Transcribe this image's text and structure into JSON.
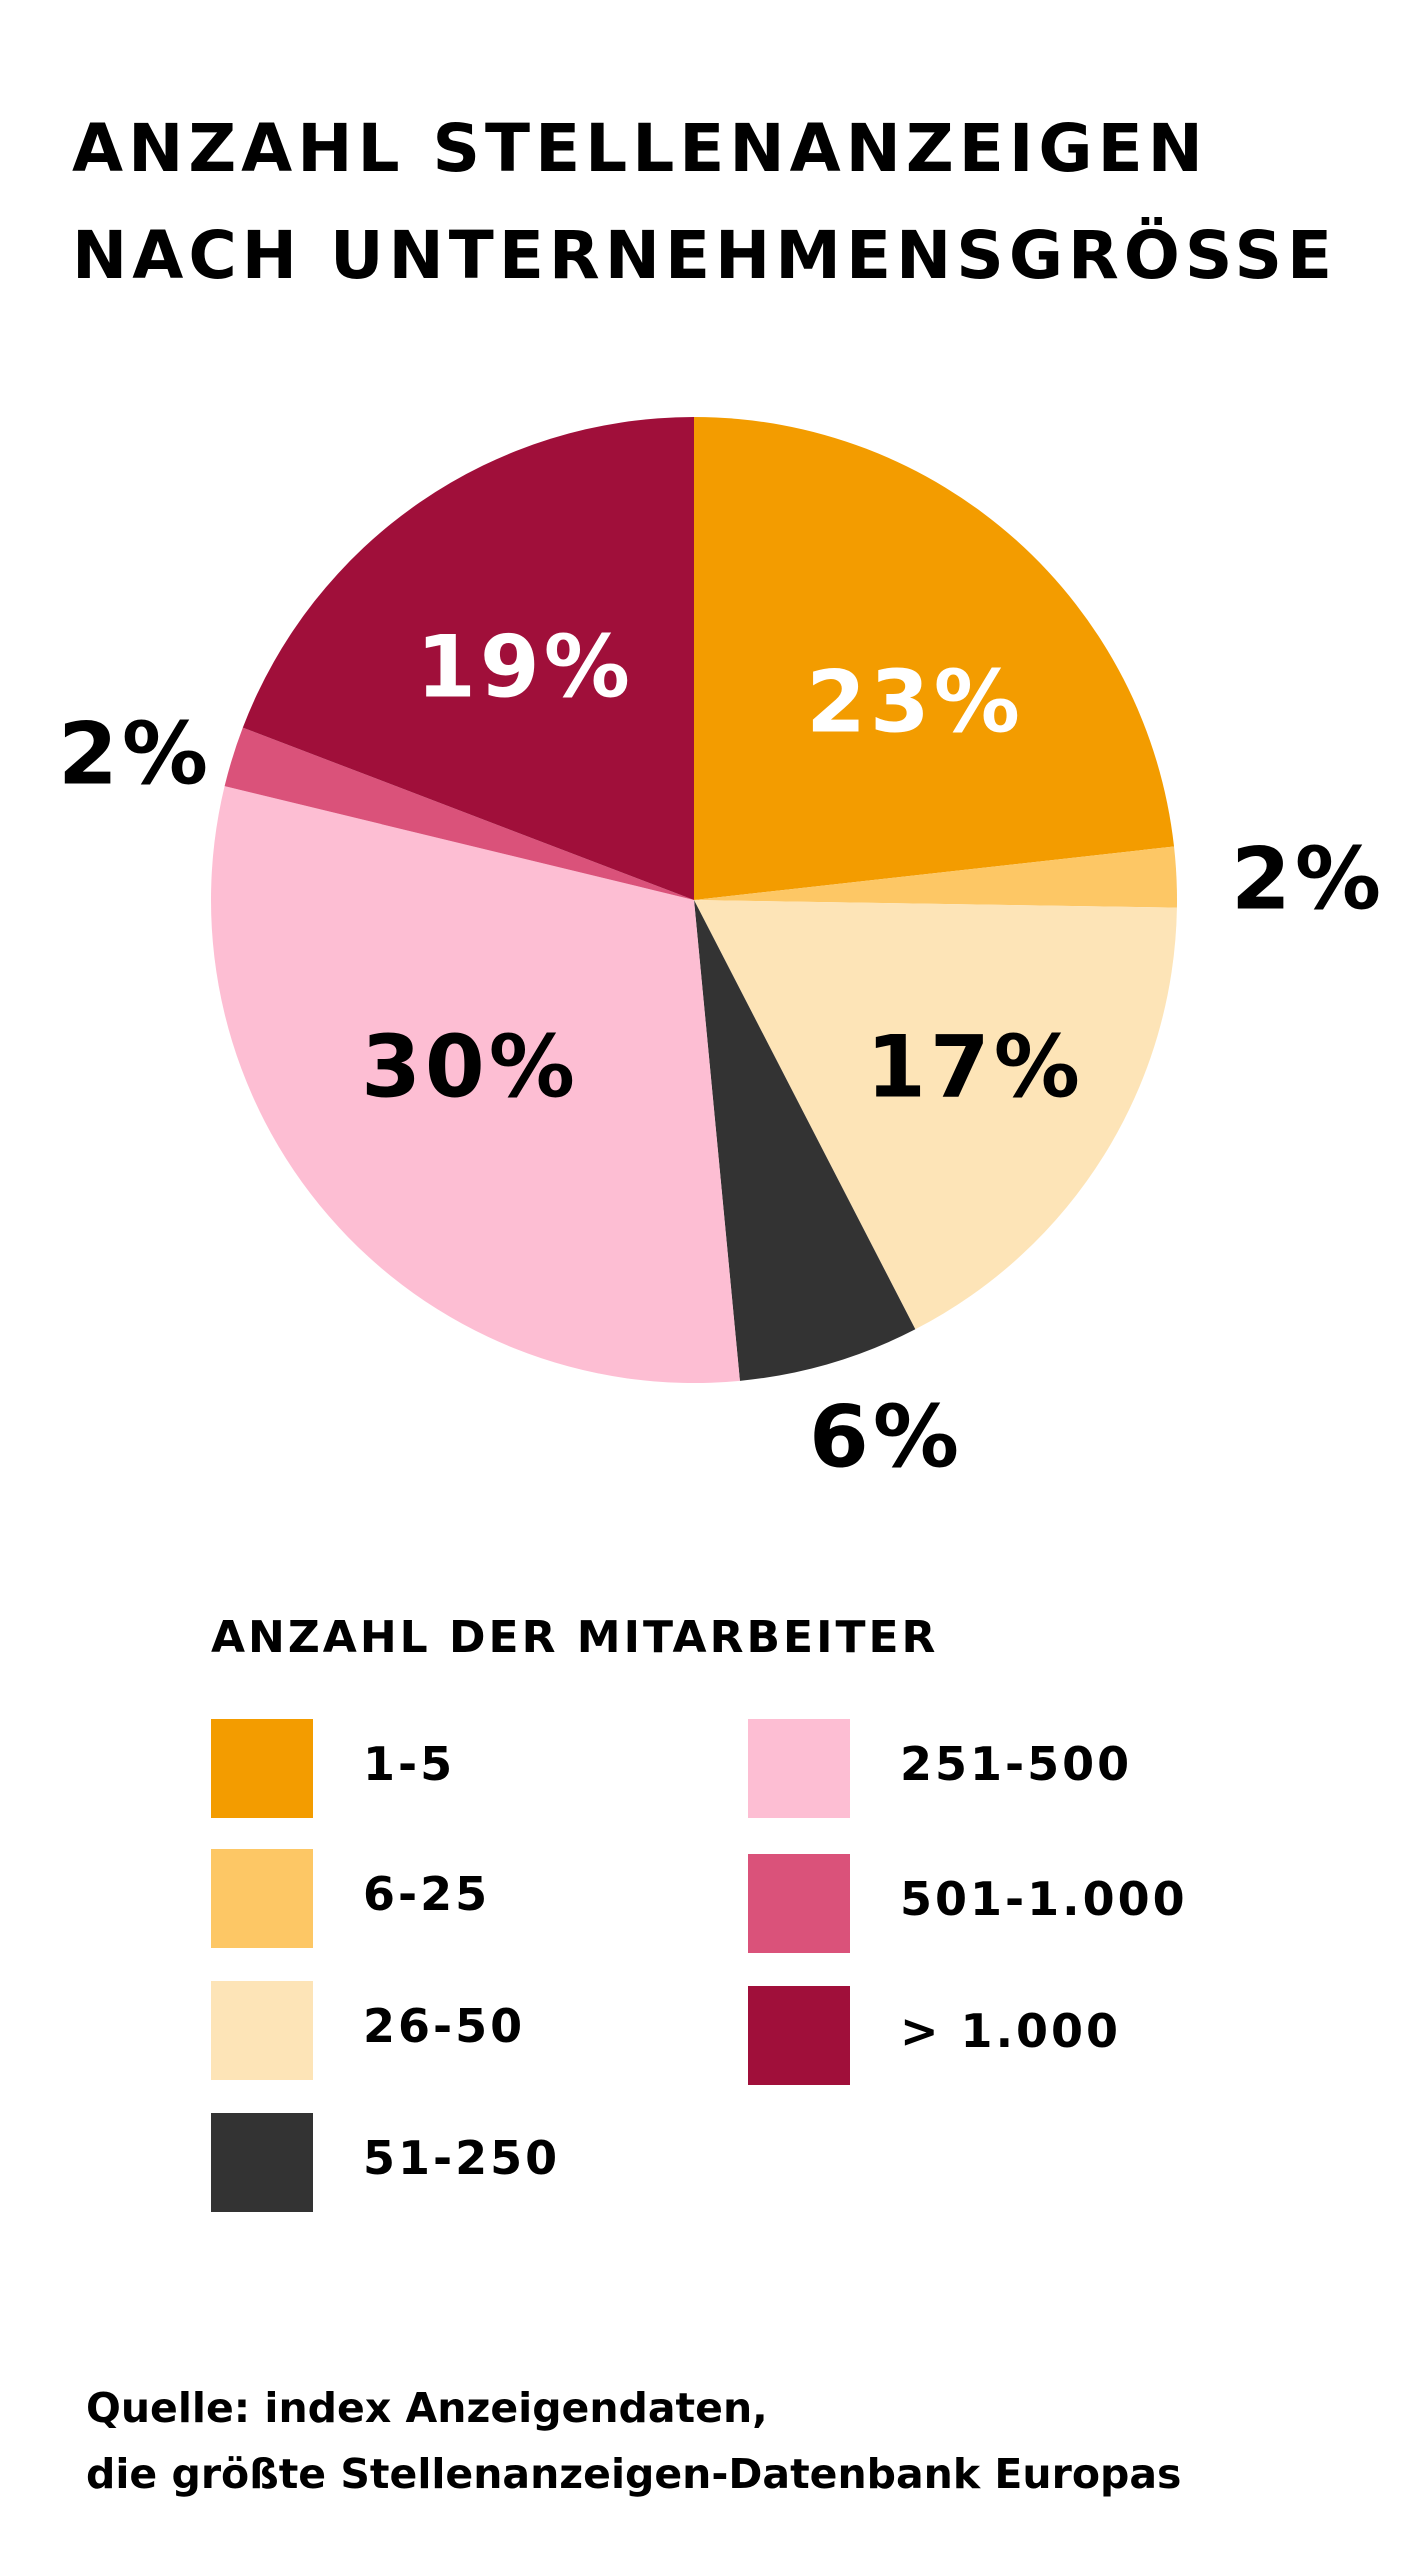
{
  "chart_data": {
    "type": "pie",
    "title": "ANZAHL STELLENANZEIGEN NACH UNTERNEHMENSGRÖSSE",
    "title_lines": [
      "ANZAHL STELLENANZEIGEN",
      "NACH UNTERNEHMENSGRÖSSE"
    ],
    "legend_title": "ANZAHL DER MITARBEITER",
    "legend_placement": "bottom",
    "start": "12 o'clock, clockwise",
    "slices": [
      {
        "label": "1-5",
        "value": 23,
        "display": "23%",
        "color": "#F39C00"
      },
      {
        "label": "6-25",
        "value": 2,
        "display": "2%",
        "color": "#FDC765"
      },
      {
        "label": "26-50",
        "value": 17,
        "display": "17%",
        "color": "#FDE4B7"
      },
      {
        "label": "51-250",
        "value": 6,
        "display": "6%",
        "color": "#333333"
      },
      {
        "label": "251-500",
        "value": 30,
        "display": "30%",
        "color": "#FDBED3"
      },
      {
        "label": "501-1.000",
        "value": 2,
        "display": "2%",
        "color": "#DA527A"
      },
      {
        "label": "> 1.000",
        "value": 19,
        "display": "19%",
        "color": "#A00F3A"
      }
    ],
    "source_lines": [
      "Quelle: index Anzeigendaten,",
      "die größte Stellenanzeigen-Datenbank Europas"
    ]
  }
}
